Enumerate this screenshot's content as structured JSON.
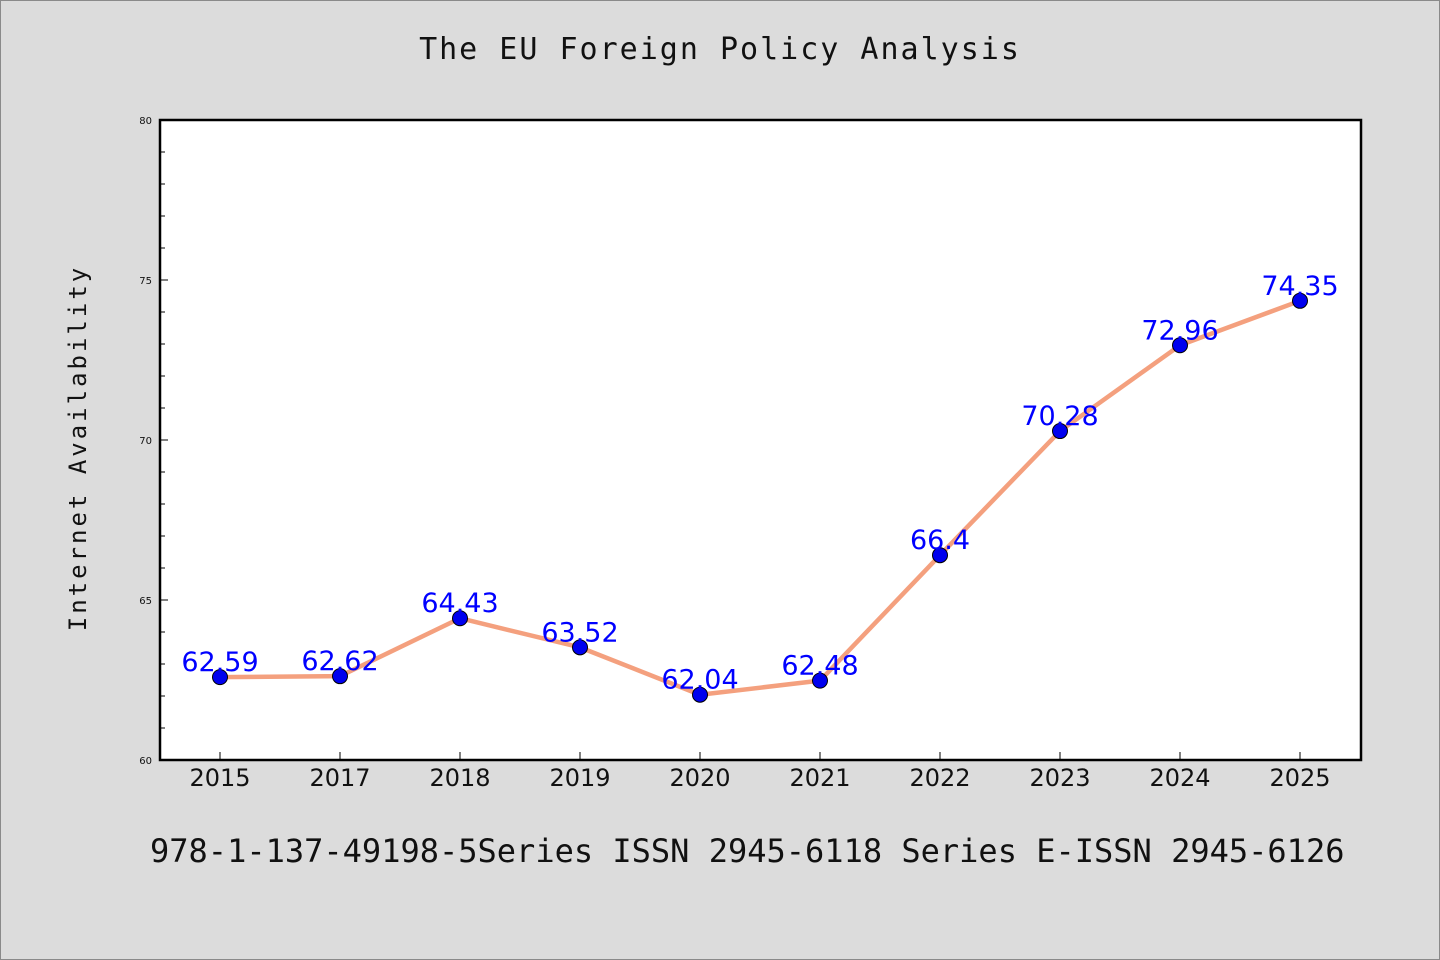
{
  "chart_data": {
    "type": "line",
    "title": "The EU Foreign Policy Analysis",
    "xlabel": "",
    "ylabel": "Internet Availability",
    "categories": [
      "2015",
      "2017",
      "2018",
      "2019",
      "2020",
      "2021",
      "2022",
      "2023",
      "2024",
      "2025"
    ],
    "series": [
      {
        "values": [
          62.59,
          62.62,
          64.43,
          63.52,
          62.04,
          62.48,
          66.4,
          70.28,
          72.96,
          74.35
        ],
        "data_labels": [
          "62.59",
          "62.62",
          "64.43",
          "63.52",
          "62.04",
          "62.48",
          "66.4",
          "70.28",
          "72.96",
          "74.35"
        ]
      }
    ],
    "ylim": [
      60,
      80
    ],
    "yticks": [
      60,
      65,
      70,
      75,
      80
    ],
    "grid": false,
    "colors": {
      "line": "#f4a07e",
      "marker": "#0000ee",
      "label": "#0000ff",
      "background": "#dcdcdc",
      "plot_background": "#ffffff"
    }
  },
  "footer": "978-1-137-49198-5Series ISSN 2945-6118 Series E-ISSN 2945-6126"
}
